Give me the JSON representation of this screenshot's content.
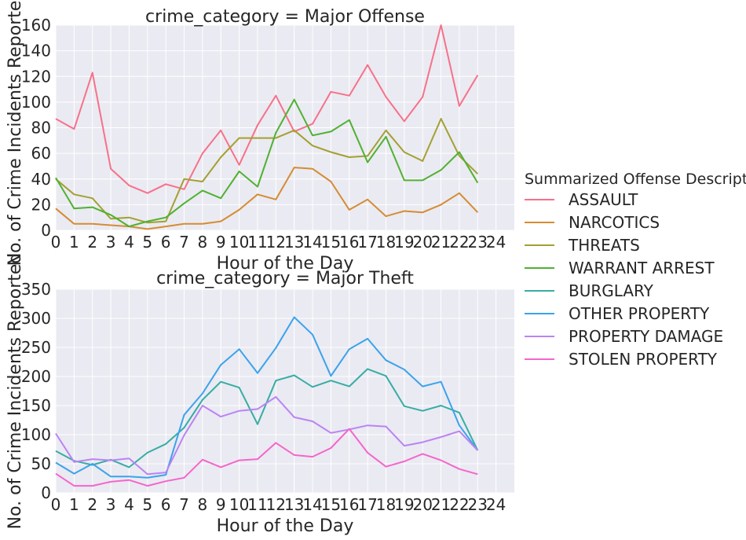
{
  "chart_data": [
    {
      "type": "line",
      "title": "crime_category = Major Offense",
      "xlabel": "Hour of the Day",
      "ylabel": "No. of Crime Incidents Reported",
      "xlim": [
        0,
        25
      ],
      "ylim": [
        0,
        160
      ],
      "xticks": [
        0,
        1,
        2,
        3,
        4,
        5,
        6,
        7,
        8,
        9,
        10,
        11,
        12,
        13,
        14,
        15,
        16,
        17,
        18,
        19,
        20,
        21,
        22,
        23,
        24
      ],
      "yticks": [
        0,
        20,
        40,
        60,
        80,
        100,
        120,
        140,
        160
      ],
      "grid": true,
      "x": [
        0,
        1,
        2,
        3,
        4,
        5,
        6,
        7,
        8,
        9,
        10,
        11,
        12,
        13,
        14,
        15,
        16,
        17,
        18,
        19,
        20,
        21,
        22,
        23
      ],
      "series": [
        {
          "name": "ASSAULT",
          "color": "#f77189",
          "values": [
            87,
            79,
            123,
            48,
            35,
            29,
            36,
            32,
            60,
            78,
            51,
            82,
            105,
            77,
            83,
            108,
            105,
            129,
            104,
            85,
            104,
            160,
            97,
            121
          ]
        },
        {
          "name": "NARCOTICS",
          "color": "#d58c32",
          "values": [
            17,
            5,
            5,
            4,
            3,
            1,
            3,
            5,
            5,
            7,
            16,
            28,
            24,
            49,
            48,
            38,
            16,
            24,
            11,
            15,
            14,
            20,
            29,
            14
          ]
        },
        {
          "name": "THREATS",
          "color": "#a4a031",
          "values": [
            40,
            28,
            25,
            9,
            10,
            6,
            7,
            40,
            38,
            57,
            72,
            72,
            72,
            78,
            66,
            61,
            57,
            58,
            78,
            61,
            54,
            87,
            58,
            44
          ]
        },
        {
          "name": "WARRANT ARREST",
          "color": "#50b131",
          "values": [
            41,
            17,
            18,
            12,
            3,
            7,
            10,
            21,
            31,
            25,
            46,
            34,
            76,
            102,
            74,
            77,
            86,
            53,
            73,
            39,
            39,
            47,
            61,
            37
          ]
        }
      ]
    },
    {
      "type": "line",
      "title": "crime_category = Major Theft",
      "xlabel": "Hour of the Day",
      "ylabel": "No. of Crime Incidents Reported",
      "xlim": [
        0,
        25
      ],
      "ylim": [
        0,
        350
      ],
      "xticks": [
        0,
        1,
        2,
        3,
        4,
        5,
        6,
        7,
        8,
        9,
        10,
        11,
        12,
        13,
        14,
        15,
        16,
        17,
        18,
        19,
        20,
        21,
        22,
        23,
        24
      ],
      "yticks": [
        0,
        50,
        100,
        150,
        200,
        250,
        300,
        350
      ],
      "grid": true,
      "x": [
        0,
        1,
        2,
        3,
        4,
        5,
        6,
        7,
        8,
        9,
        10,
        11,
        12,
        13,
        14,
        15,
        16,
        17,
        18,
        19,
        20,
        21,
        22,
        23
      ],
      "series": [
        {
          "name": "BURGLARY",
          "color": "#36ada4",
          "values": [
            72,
            55,
            48,
            57,
            44,
            69,
            84,
            112,
            160,
            191,
            181,
            118,
            193,
            202,
            182,
            193,
            183,
            213,
            201,
            149,
            141,
            150,
            138,
            73
          ]
        },
        {
          "name": "OTHER PROPERTY",
          "color": "#3ba3ec",
          "values": [
            52,
            33,
            50,
            28,
            28,
            26,
            31,
            134,
            171,
            220,
            247,
            206,
            249,
            302,
            272,
            201,
            247,
            265,
            228,
            212,
            183,
            191,
            116,
            73
          ]
        },
        {
          "name": "PROPERTY DAMAGE",
          "color": "#bb83f4",
          "values": [
            102,
            53,
            58,
            56,
            59,
            32,
            35,
            99,
            150,
            131,
            141,
            144,
            165,
            130,
            123,
            103,
            109,
            116,
            114,
            81,
            87,
            96,
            106,
            73
          ]
        },
        {
          "name": "STOLEN PROPERTY",
          "color": "#f565cc",
          "values": [
            33,
            12,
            12,
            19,
            22,
            12,
            20,
            26,
            57,
            44,
            56,
            58,
            86,
            65,
            62,
            77,
            110,
            69,
            45,
            54,
            67,
            56,
            41,
            32
          ]
        }
      ]
    }
  ],
  "legend": {
    "title": "Summarized Offense Description",
    "placement": "right",
    "entries": [
      {
        "label": "ASSAULT",
        "color": "#f77189"
      },
      {
        "label": "NARCOTICS",
        "color": "#d58c32"
      },
      {
        "label": "THREATS",
        "color": "#a4a031"
      },
      {
        "label": "WARRANT ARREST",
        "color": "#50b131"
      },
      {
        "label": "BURGLARY",
        "color": "#36ada4"
      },
      {
        "label": "OTHER PROPERTY",
        "color": "#3ba3ec"
      },
      {
        "label": "PROPERTY DAMAGE",
        "color": "#bb83f4"
      },
      {
        "label": "STOLEN PROPERTY",
        "color": "#f565cc"
      }
    ]
  },
  "style": {
    "plot_bg": "#eaeaf2",
    "grid_color": "#ffffff",
    "text_color": "#262626"
  }
}
